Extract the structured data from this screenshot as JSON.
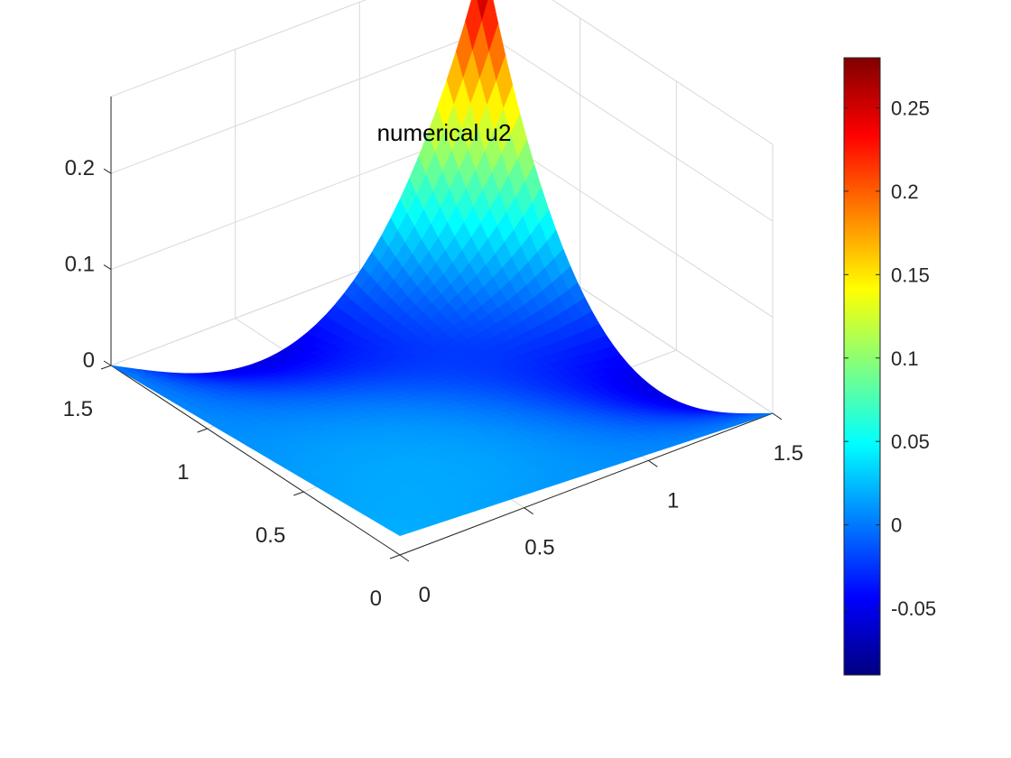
{
  "chart_data": {
    "type": "surface",
    "title": "numerical u2",
    "xlabel": "",
    "ylabel": "",
    "zlabel": "",
    "xlim": [
      0,
      1.5
    ],
    "ylim": [
      0,
      1.5
    ],
    "zlim": [
      0,
      0.28
    ],
    "x_ticks": [
      0,
      0.5,
      1,
      1.5
    ],
    "y_ticks": [
      0,
      0.5,
      1,
      1.5
    ],
    "z_ticks": [
      0,
      0.1,
      0.2
    ],
    "x_tick_labels": [
      "0",
      "0.5",
      "1",
      "1.5"
    ],
    "y_tick_labels": [
      "0",
      "0.5",
      "1",
      "1.5"
    ],
    "z_tick_labels": [
      "0",
      "0.1",
      "0.2"
    ],
    "grid": true,
    "colormap": "jet",
    "colorbar": {
      "range": [
        -0.09,
        0.28
      ],
      "ticks": [
        -0.05,
        0,
        0.05,
        0.1,
        0.15,
        0.2,
        0.25
      ],
      "tick_labels": [
        "-0.05",
        "0",
        "0.05",
        "0.1",
        "0.15",
        "0.2",
        "0.25"
      ],
      "position": "right"
    },
    "surface": {
      "description_values": {
        "corner_00": 0.02,
        "corner_x_max": 0.0,
        "corner_y_max": 0.0,
        "corner_xy_max": 0.28,
        "min_value": -0.09
      }
    }
  }
}
